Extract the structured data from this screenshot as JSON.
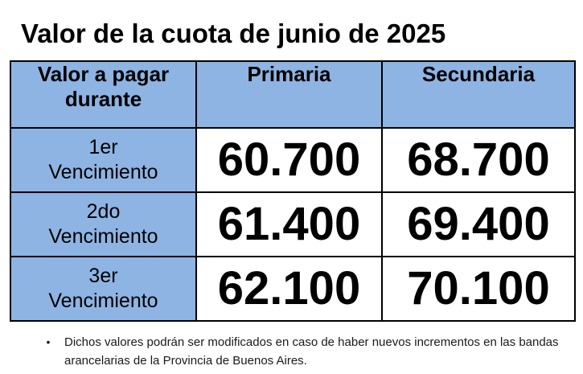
{
  "title": "Valor de la cuota de junio de 2025",
  "table": {
    "header": {
      "col0": "Valor a pagar durante",
      "col1": "Primaria",
      "col2": "Secundaria"
    },
    "rows": [
      {
        "label_line1": "1er",
        "label_line2": "Vencimiento",
        "primaria": "60.700",
        "secundaria": "68.700"
      },
      {
        "label_line1": "2do",
        "label_line2": "Vencimiento",
        "primaria": "61.400",
        "secundaria": "69.400"
      },
      {
        "label_line1": "3er",
        "label_line2": "Vencimiento",
        "primaria": "62.100",
        "secundaria": "70.100"
      }
    ]
  },
  "note": {
    "bullet": "•",
    "text": "Dichos valores podrán ser modificados en caso de haber nuevos incrementos en las bandas arancelarias de la Provincia de Buenos Aires."
  },
  "colors": {
    "header_fill": "#8eb4e3",
    "border": "#000000"
  }
}
